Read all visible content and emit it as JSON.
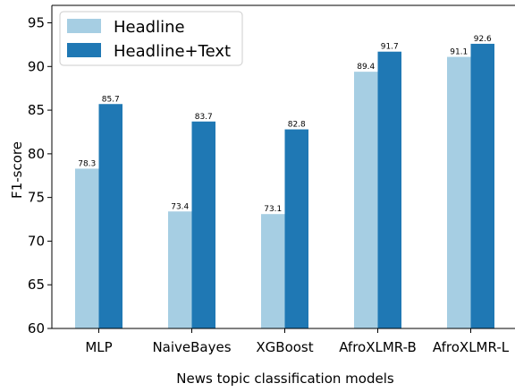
{
  "chart_data": {
    "type": "bar",
    "xlabel": "News topic classification models",
    "ylabel": "F1-score",
    "ylim": [
      60,
      97
    ],
    "yticks": [
      60,
      65,
      70,
      75,
      80,
      85,
      90,
      95
    ],
    "categories": [
      "MLP",
      "NaiveBayes",
      "XGBoost",
      "AfroXLMR-B",
      "AfroXLMR-L"
    ],
    "series": [
      {
        "name": "Headline",
        "color": "#a6cee3",
        "values": [
          78.3,
          73.4,
          73.1,
          89.4,
          91.1
        ]
      },
      {
        "name": "Headline+Text",
        "color": "#1f78b4",
        "values": [
          85.7,
          83.7,
          82.8,
          91.7,
          92.6
        ]
      }
    ],
    "legend_position": "top-left",
    "grid": false
  }
}
